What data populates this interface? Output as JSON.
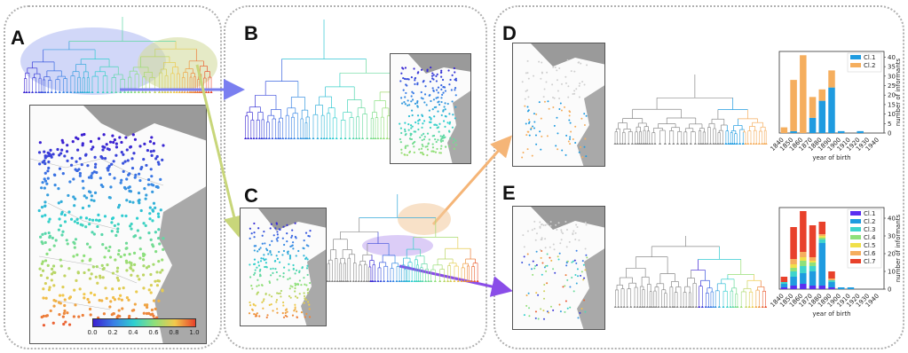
{
  "panels": {
    "a": {
      "label": "A"
    },
    "b": {
      "label": "B"
    },
    "c": {
      "label": "C"
    },
    "d": {
      "label": "D"
    },
    "e": {
      "label": "E"
    }
  },
  "colorbar": {
    "ticks": [
      "0.0",
      "0.2",
      "0.4",
      "0.6",
      "0.8",
      "1.0"
    ],
    "colors": [
      "#3b1fd1",
      "#3a7fe6",
      "#2fd0d0",
      "#8fe07a",
      "#f2c94c",
      "#e8412b"
    ]
  },
  "chart_data": [
    {
      "type": "bar",
      "stacked": true,
      "categories": [
        "1840",
        "1850",
        "1860",
        "1870",
        "1880",
        "1890",
        "1900",
        "1910",
        "1920",
        "1930",
        "1940"
      ],
      "series": [
        {
          "name": "Cl.1",
          "color": "#1f9be0",
          "values": [
            0,
            1,
            0,
            8,
            17,
            24,
            1,
            0,
            1,
            0,
            0
          ]
        },
        {
          "name": "Cl.2",
          "color": "#f5ae5e",
          "values": [
            3,
            27,
            41,
            11,
            6,
            9,
            0,
            0,
            0,
            0,
            0
          ]
        }
      ],
      "xlabel": "year of birth",
      "ylabel": "number of informants",
      "yticks": [
        "0",
        "5",
        "10",
        "15",
        "20",
        "25",
        "30",
        "35",
        "40"
      ],
      "ylim": [
        0,
        43
      ]
    },
    {
      "type": "bar",
      "stacked": true,
      "categories": [
        "1840",
        "1850",
        "1860",
        "1870",
        "1880",
        "1890",
        "1900",
        "1910",
        "1920",
        "1930",
        "1940"
      ],
      "series": [
        {
          "name": "Cl.1",
          "color": "#5a2ff0",
          "values": [
            1,
            2,
            3,
            2,
            2,
            1,
            0,
            0,
            0,
            0,
            0
          ]
        },
        {
          "name": "Cl.2",
          "color": "#1f9be0",
          "values": [
            2,
            5,
            6,
            8,
            24,
            3,
            1,
            1,
            0,
            0,
            0
          ]
        },
        {
          "name": "Cl.3",
          "color": "#3fd4cc",
          "values": [
            1,
            3,
            4,
            3,
            2,
            1,
            0,
            0,
            0,
            0,
            0
          ]
        },
        {
          "name": "Cl.4",
          "color": "#8fe07a",
          "values": [
            0,
            2,
            3,
            2,
            1,
            0,
            0,
            0,
            0,
            0,
            0
          ]
        },
        {
          "name": "Cl.5",
          "color": "#f0e04a",
          "values": [
            0,
            2,
            2,
            1,
            1,
            0,
            0,
            0,
            0,
            0,
            0
          ]
        },
        {
          "name": "Cl.6",
          "color": "#f5ae5e",
          "values": [
            0,
            3,
            3,
            2,
            1,
            1,
            0,
            0,
            0,
            0,
            0
          ]
        },
        {
          "name": "Cl.7",
          "color": "#e8412b",
          "values": [
            3,
            18,
            23,
            18,
            7,
            4,
            0,
            0,
            0,
            0,
            0
          ]
        }
      ],
      "xlabel": "year of birth",
      "ylabel": "number of informants",
      "yticks": [
        "0",
        "10",
        "20",
        "30",
        "40"
      ],
      "ylim": [
        0,
        46
      ]
    }
  ]
}
